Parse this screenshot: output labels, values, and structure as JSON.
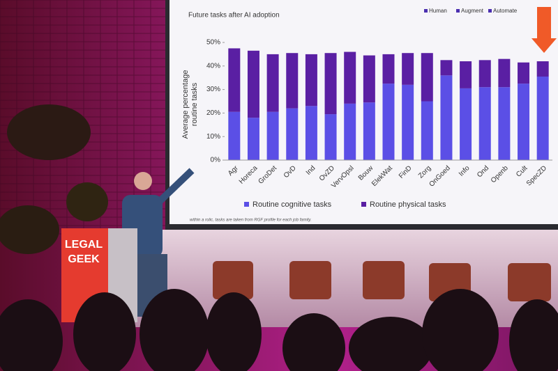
{
  "chart_data": {
    "type": "bar",
    "stacked": true,
    "title": "Future tasks after AI adoption",
    "top_legend": [
      "Human",
      "Augment",
      "Automate"
    ],
    "ylabel": [
      "Average percentage",
      "routine tasks"
    ],
    "categories": [
      "Agr",
      "Horeca",
      "GroDet",
      "OvD",
      "Ind",
      "OvZD",
      "VervOpsl",
      "Bouw",
      "ElekWat",
      "FinD",
      "Zorg",
      "OnGoed",
      "Info",
      "Ond",
      "Openb",
      "Cult",
      "SpecZD"
    ],
    "series": [
      {
        "name": "Routine cognitive tasks",
        "color": "#5b4fe6",
        "values": [
          20.5,
          18,
          20.5,
          22,
          23,
          19.5,
          24,
          24.5,
          32.5,
          32,
          25,
          36,
          30.5,
          31,
          31,
          32.5,
          35.5
        ]
      },
      {
        "name": "Routine physical tasks",
        "color": "#5a1fa3",
        "values": [
          27,
          28.5,
          24.5,
          23.5,
          22,
          26,
          22,
          20,
          12.5,
          13.5,
          20.5,
          6.5,
          11.5,
          11.5,
          12,
          9,
          6.5
        ]
      }
    ],
    "ylim": [
      0,
      50
    ],
    "yticks": [
      {
        "value": 0,
        "label": "0%"
      },
      {
        "value": 10,
        "label": "10%"
      },
      {
        "value": 20,
        "label": "20%"
      },
      {
        "value": 30,
        "label": "30%"
      },
      {
        "value": 40,
        "label": "40%"
      },
      {
        "value": 50,
        "label": "50%"
      }
    ],
    "footnote": "within a rolic, tasks are taken from RGF profile for each job family."
  },
  "podium": [
    "LEGAL",
    "GEEK"
  ]
}
